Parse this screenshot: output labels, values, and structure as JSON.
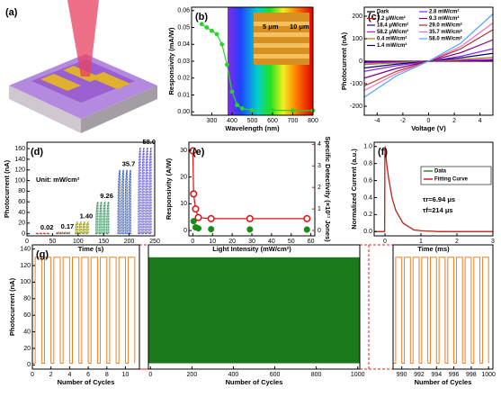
{
  "chart_data": [
    {
      "type": "schematic",
      "panel": "(a)"
    },
    {
      "type": "line",
      "panel": "(b)",
      "xlabel": "Wavelength (nm)",
      "ylabel": "Responsivity (mA/W)",
      "xlim": [
        200,
        800
      ],
      "xticks": [
        300,
        400,
        500,
        600,
        700,
        800
      ],
      "ylim": [
        -0.002,
        0.062
      ],
      "yticks": [
        {
          "value": 0,
          "label": "0.00"
        },
        {
          "value": 0.01,
          "label": "0.01"
        },
        {
          "value": 0.02,
          "label": "0.02"
        },
        {
          "value": 0.03,
          "label": "0.03"
        },
        {
          "value": 0.04,
          "label": "0.04"
        },
        {
          "value": 0.05,
          "label": "0.05"
        },
        {
          "value": 0.06,
          "label": "0.06"
        }
      ],
      "annotations": [
        "5 μm",
        "10 μm"
      ],
      "series": [
        {
          "color": "#2bd42b",
          "marker": "circle",
          "x": [
            250,
            275,
            300,
            325,
            350,
            375,
            400,
            425,
            450,
            500,
            600,
            700,
            800
          ],
          "values": [
            0.052,
            0.05,
            0.048,
            0.046,
            0.04,
            0.028,
            0.012,
            0.004,
            0.002,
            0.001,
            0.001,
            0.0008,
            0.0008
          ]
        }
      ]
    },
    {
      "type": "line",
      "panel": "(c)",
      "xlabel": "Voltage (V)",
      "ylabel": "Photocurrent (nA)",
      "legend": "upper left",
      "xlim": [
        -5,
        5
      ],
      "xticks": [
        -4,
        -2,
        0,
        2,
        4
      ],
      "ylim": [
        -240,
        240
      ],
      "yticks": [
        -200,
        -100,
        0,
        100,
        200
      ],
      "x": [
        -5,
        -2.5,
        0,
        2.5,
        5
      ],
      "series": [
        {
          "name": "Dark",
          "color": "#000000",
          "values": [
            0,
            0,
            0,
            0,
            0
          ]
        },
        {
          "name": "7.2 μW/cm²",
          "color": "#e00000",
          "values": [
            -2,
            -1,
            0,
            1,
            2
          ]
        },
        {
          "name": "18.4 μW/cm²",
          "color": "#0000e0",
          "values": [
            -4,
            -2,
            0,
            2,
            4
          ]
        },
        {
          "name": "58.2 μW/cm²",
          "color": "#e000e0",
          "values": [
            -8,
            -4,
            0,
            4,
            8
          ]
        },
        {
          "name": "0.4 mW/cm²",
          "color": "#909000",
          "values": [
            -15,
            -7,
            0,
            8,
            17
          ]
        },
        {
          "name": "1.4 mW/cm²",
          "color": "#000080",
          "values": [
            -30,
            -13,
            0,
            15,
            35
          ]
        },
        {
          "name": "2.8 mW/cm²",
          "color": "#8a2be2",
          "values": [
            -45,
            -20,
            0,
            22,
            55
          ]
        },
        {
          "name": "9.3 mW/cm²",
          "color": "#800080",
          "values": [
            -75,
            -32,
            0,
            38,
            95
          ]
        },
        {
          "name": "29.0 mW/cm²",
          "color": "#b03030",
          "values": [
            -110,
            -45,
            0,
            55,
            140
          ]
        },
        {
          "name": "35.7 mW/cm²",
          "color": "#ff69b4",
          "values": [
            -130,
            -55,
            0,
            65,
            170
          ]
        },
        {
          "name": "58.0 mW/cm²",
          "color": "#4da6ff",
          "values": [
            -160,
            -65,
            0,
            80,
            210
          ]
        }
      ]
    },
    {
      "type": "pulses",
      "panel": "(d)",
      "xlabel": "Time (s)",
      "ylabel": "Photocurrent (nA)",
      "xlim": [
        0,
        250
      ],
      "xticks": [
        0,
        50,
        100,
        150,
        200,
        250
      ],
      "ylim": [
        -4,
        172
      ],
      "yticks": [
        0,
        20,
        40,
        60,
        80,
        100,
        120,
        140,
        160
      ],
      "annotations": [
        "Unit: mW/cm²"
      ],
      "series": [
        {
          "label": "0.02",
          "color": "#d02020",
          "x": [
            18,
            25,
            32,
            39
          ],
          "width": 4,
          "low": 0,
          "high": 1
        },
        {
          "label": "0.17",
          "color": "#8b4513",
          "x": [
            58,
            65,
            72,
            79
          ],
          "width": 4,
          "low": 0,
          "high": 3
        },
        {
          "label": "1.40",
          "color": "#8b8b00",
          "x": [
            95,
            102,
            109,
            116
          ],
          "width": 4,
          "low": 0,
          "high": 22
        },
        {
          "label": "9.26",
          "color": "#2e8b57",
          "x": [
            135,
            142,
            149,
            156
          ],
          "width": 4,
          "low": 0,
          "high": 60
        },
        {
          "label": "35.7",
          "color": "#1e50c8",
          "x": [
            178,
            185,
            192,
            199
          ],
          "width": 4,
          "low": 0,
          "high": 120
        },
        {
          "label": "58.0",
          "color": "#5a4fd0",
          "x": [
            218,
            225,
            232,
            239
          ],
          "width": 4,
          "low": 0,
          "high": 162
        }
      ]
    },
    {
      "type": "scatter",
      "panel": "(e)",
      "xlabel": "Light Intensity (mW/cm²)",
      "ylabel": "Responsivity (A/W)",
      "y2label": "Specific Detectivity (×10¹¹ Jones)",
      "xlim": [
        -2,
        62
      ],
      "xticks": [
        0,
        10,
        20,
        30,
        40,
        50,
        60
      ],
      "ylim": [
        -2,
        33
      ],
      "yticks": [
        0,
        10,
        20,
        30
      ],
      "y2lim": [
        -0.25,
        4.1
      ],
      "y2ticks": [
        0,
        1,
        2,
        3,
        4
      ],
      "series": [
        {
          "color": "#1a8a1a",
          "x": [
            0.4,
            1.4,
            2.8,
            9.3,
            29.0,
            58.0
          ],
          "values": [
            3.5,
            1.2,
            0.8,
            0.5,
            0.4,
            0.35
          ]
        },
        {
          "color": "#e01010",
          "axis": "y2",
          "x": [
            0.0072,
            0.4,
            1.4,
            2.8,
            9.3,
            29.0,
            58.0
          ],
          "values": [
            3.7,
            1.7,
            1.0,
            0.6,
            0.55,
            0.55,
            0.55
          ]
        }
      ]
    },
    {
      "type": "line",
      "panel": "(f)",
      "xlabel": "Time (ms)",
      "ylabel": "Normalized Current (a.u.)",
      "legend": "center right",
      "xlim": [
        -0.3,
        3
      ],
      "xticks": [
        0,
        1,
        2,
        3
      ],
      "ylim": [
        -0.05,
        1.05
      ],
      "yticks": [
        {
          "value": 0,
          "label": "0.0"
        },
        {
          "value": 0.2,
          "label": "0.2"
        },
        {
          "value": 0.4,
          "label": "0.4"
        },
        {
          "value": 0.6,
          "label": "0.6"
        },
        {
          "value": 0.8,
          "label": "0.8"
        },
        {
          "value": 1,
          "label": "1.0"
        }
      ],
      "annotations": [
        "τr=6.94 μs",
        "τf=214 μs"
      ],
      "x": [
        -0.3,
        -0.01,
        0,
        0.05,
        0.1,
        0.2,
        0.3,
        0.5,
        0.8,
        1,
        1.5,
        2,
        3
      ],
      "series": [
        {
          "name": "Data",
          "color": "#2a8a2a",
          "values": [
            0,
            0,
            1,
            0.79,
            0.63,
            0.39,
            0.25,
            0.1,
            0.02,
            0.01,
            0,
            0,
            0
          ]
        },
        {
          "name": "Fitting Curve",
          "color": "#d02020",
          "values": [
            0,
            0,
            1,
            0.79,
            0.63,
            0.39,
            0.25,
            0.1,
            0.02,
            0.01,
            0,
            0,
            0
          ]
        }
      ]
    },
    {
      "type": "pulses",
      "panel": "(g)",
      "xlabel": "Number of Cycles",
      "ylabel": "Photocurrent (nA)",
      "xlim": [
        0,
        11.5
      ],
      "xticks": [
        0,
        2,
        4,
        6,
        8,
        10
      ],
      "ylim": [
        -5,
        145
      ],
      "yticks": [
        0,
        20,
        40,
        60,
        80,
        100,
        120,
        140
      ],
      "series": [
        {
          "color": "#f08020",
          "x": [
            0.3,
            1.3,
            2.3,
            3.3,
            4.3,
            5.3,
            6.3,
            7.3,
            8.3,
            9.3,
            10.3
          ],
          "width": 0.7,
          "low": 2,
          "high": 130
        }
      ]
    },
    {
      "type": "band",
      "xlabel": "Number of Cycles",
      "xlim": [
        -10,
        1010
      ],
      "xticks": [
        0,
        200,
        400,
        600,
        800,
        1000
      ],
      "ylim": [
        -5,
        145
      ],
      "color": "#1a7a1a",
      "values": [
        2,
        130
      ]
    },
    {
      "type": "pulses",
      "xlabel": "Number of Cycles",
      "xlim": [
        989,
        1000.5
      ],
      "xticks": [
        990,
        992,
        994,
        996,
        998,
        1000
      ],
      "ylim": [
        -5,
        145
      ],
      "series": [
        {
          "color": "#f08020",
          "x": [
            989.3,
            990.3,
            991.3,
            992.3,
            993.3,
            994.3,
            995.3,
            996.3,
            997.3,
            998.3,
            999.3
          ],
          "width": 0.7,
          "low": 2,
          "high": 130
        }
      ]
    }
  ]
}
